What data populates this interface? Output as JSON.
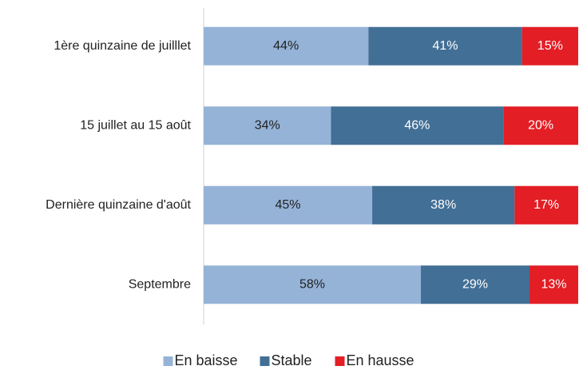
{
  "chart_data": {
    "type": "stacked_barh",
    "categories": [
      "1ère quinzaine de juilllet",
      "15 juillet au 15 août",
      "Dernière quinzaine d'août",
      "Septembre"
    ],
    "series": [
      {
        "name": "En baisse",
        "color": "#95b3d7",
        "values": [
          44,
          34,
          45,
          58
        ],
        "value_labels": [
          "44%",
          "34%",
          "45%",
          "58%"
        ]
      },
      {
        "name": "Stable",
        "color": "#426f96",
        "values": [
          41,
          46,
          38,
          29
        ],
        "value_labels": [
          "41%",
          "46%",
          "38%",
          "29%"
        ]
      },
      {
        "name": "En hausse",
        "color": "#e31e25",
        "values": [
          15,
          20,
          17,
          13
        ],
        "value_labels": [
          "15%",
          "20%",
          "17%",
          "13%"
        ]
      }
    ],
    "legend": "bottom"
  }
}
